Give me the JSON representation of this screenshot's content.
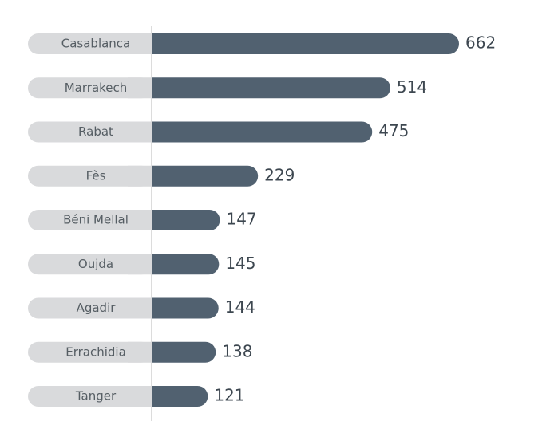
{
  "chart_data": {
    "type": "bar",
    "orientation": "horizontal",
    "categories": [
      "Casablanca",
      "Marrakech",
      "Rabat",
      "Fès",
      "Béni Mellal",
      "Oujda",
      "Agadir",
      "Errachidia",
      "Tanger"
    ],
    "values": [
      662,
      514,
      475,
      229,
      147,
      145,
      144,
      138,
      121
    ],
    "color": "#516170"
  }
}
